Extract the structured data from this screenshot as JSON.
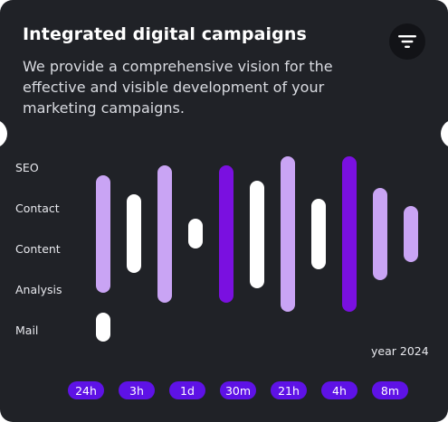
{
  "card": {
    "title": "Integrated digital campaigns",
    "description": "We provide a comprehensive vision for the effective and visible development of your marketing campaigns.",
    "filter_icon": "filter-icon"
  },
  "colors": {
    "background": "#202227",
    "white_bar": "#ffffff",
    "light_purple_bar": "#c9a4f4",
    "purple_bar": "#7a10e0",
    "chip": "#5e12e6"
  },
  "categories": [
    "SEO",
    "Contact",
    "Content",
    "Analysis",
    "Mail"
  ],
  "year_label": "year 2024",
  "time_chips": [
    "24h",
    "3h",
    "1d",
    "30m",
    "21h",
    "4h",
    "8m"
  ]
}
